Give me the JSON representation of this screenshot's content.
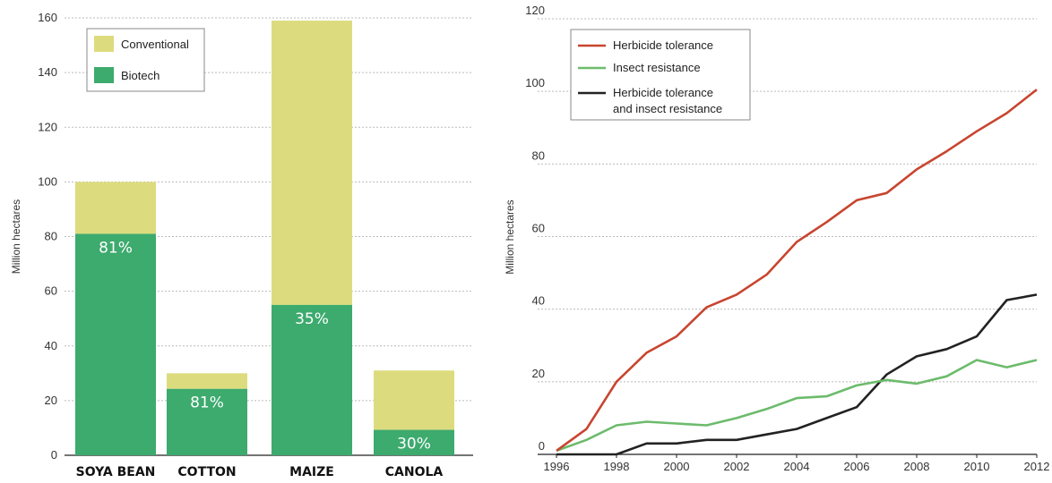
{
  "chart_data": [
    {
      "type": "bar",
      "stacked": true,
      "categories": [
        "SOYA BEAN",
        "COTTON",
        "MAIZE",
        "CANOLA"
      ],
      "series": [
        {
          "name": "Biotech",
          "values": [
            81,
            24.3,
            55,
            9.3
          ],
          "color": "#3daa6e"
        },
        {
          "name": "Conventional",
          "values": [
            19,
            5.7,
            104,
            21.7
          ],
          "color": "#dcdc7e"
        }
      ],
      "labels": [
        "81%",
        "81%",
        "35%",
        "30%"
      ],
      "ylabel": "Million hectares",
      "ylim": [
        0,
        160
      ],
      "yticks": [
        0,
        20,
        40,
        60,
        80,
        100,
        120,
        140,
        160
      ],
      "grid": true,
      "legend": {
        "position": "top-left",
        "entries": [
          "Conventional",
          "Biotech"
        ]
      }
    },
    {
      "type": "line",
      "x": [
        1996,
        1997,
        1998,
        1999,
        2000,
        2001,
        2002,
        2003,
        2004,
        2005,
        2006,
        2007,
        2008,
        2009,
        2010,
        2011,
        2012
      ],
      "series": [
        {
          "name": "Herbicide tolerance",
          "color": "#c8452f",
          "values": [
            1,
            7,
            20,
            28,
            32.5,
            40.5,
            44,
            49.5,
            58.5,
            64,
            70,
            72,
            78.5,
            83.5,
            89,
            94,
            100.5
          ]
        },
        {
          "name": "Insect resistance",
          "color": "#6cbb6c",
          "values": [
            1,
            4,
            8,
            9,
            8.5,
            8,
            10,
            12.5,
            15.5,
            16,
            19,
            20.5,
            19.5,
            21.5,
            26,
            24,
            26
          ]
        },
        {
          "name": "Herbicide tolerance and insect resistance",
          "color": "#222222",
          "legend_lines": [
            "Herbicide tolerance",
            "and insect resistance"
          ],
          "values": [
            0,
            0,
            0,
            3,
            3,
            4,
            4,
            5.5,
            7,
            10,
            13,
            22,
            27,
            29,
            32.5,
            42.5,
            44
          ]
        }
      ],
      "xticks": [
        1996,
        1998,
        2000,
        2002,
        2004,
        2006,
        2008,
        2010,
        2012
      ],
      "ylabel": "Million hectares",
      "ylim": [
        0,
        120
      ],
      "yticks": [
        0,
        20,
        40,
        60,
        80,
        100,
        120
      ],
      "grid": true,
      "legend": {
        "position": "top-left"
      }
    }
  ]
}
